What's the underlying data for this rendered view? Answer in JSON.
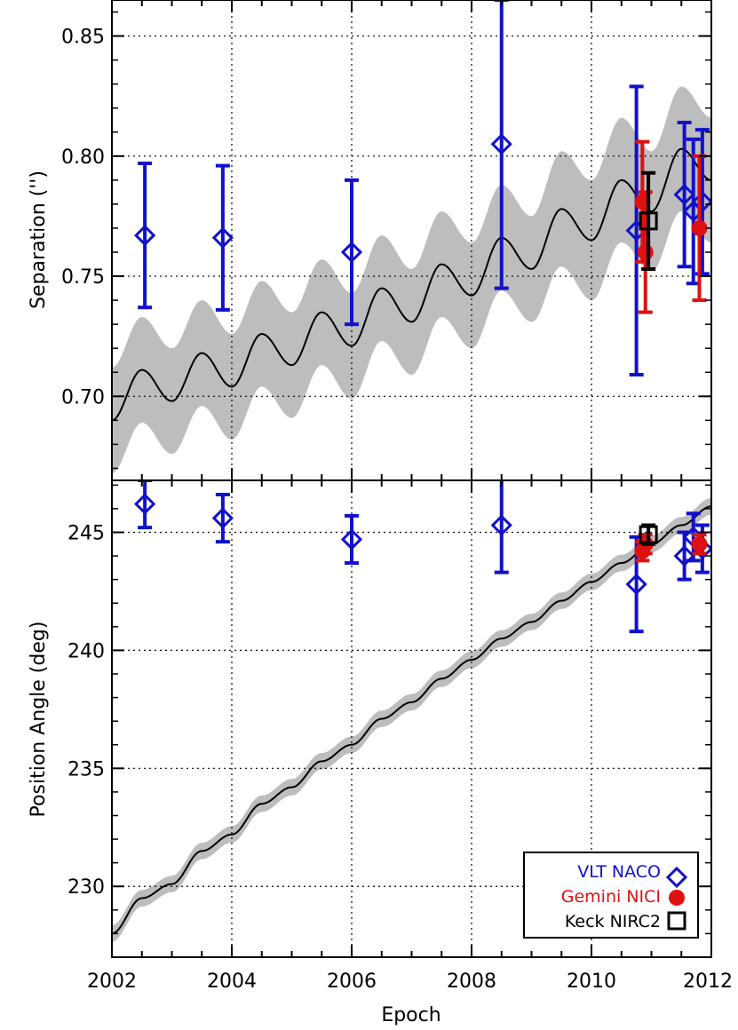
{
  "chart_data": [
    {
      "type": "scatter",
      "panel": "top",
      "ylabel": "Separation ('')",
      "xlim": [
        2002,
        2012
      ],
      "ylim": [
        0.665,
        0.865
      ],
      "yticks": [
        "0.70",
        "0.75",
        "0.80",
        "0.85"
      ],
      "grid": true,
      "model": {
        "curve": "black line with gray uncertainty band",
        "x": [
          2002.0,
          2002.5,
          2003.0,
          2003.5,
          2004.0,
          2004.5,
          2005.0,
          2005.5,
          2006.0,
          2006.5,
          2007.0,
          2007.5,
          2008.0,
          2008.5,
          2009.0,
          2009.5,
          2010.0,
          2010.5,
          2011.0,
          2011.5,
          2012.0
        ],
        "y": [
          0.69,
          0.711,
          0.698,
          0.718,
          0.704,
          0.726,
          0.713,
          0.735,
          0.721,
          0.745,
          0.731,
          0.755,
          0.742,
          0.766,
          0.753,
          0.778,
          0.765,
          0.79,
          0.777,
          0.803,
          0.79
        ],
        "band_halfwidth": [
          0.022,
          0.022,
          0.022,
          0.022,
          0.022,
          0.022,
          0.022,
          0.022,
          0.022,
          0.022,
          0.022,
          0.022,
          0.022,
          0.022,
          0.022,
          0.024,
          0.025,
          0.026,
          0.025,
          0.026,
          0.026
        ]
      },
      "series": [
        {
          "name": "VLT  NACO",
          "marker": "diamond",
          "color": "#1111cc",
          "x": [
            2002.55,
            2003.85,
            2006.0,
            2008.5,
            2010.75,
            2011.55,
            2011.7,
            2011.85
          ],
          "y": [
            0.767,
            0.766,
            0.76,
            0.805,
            0.769,
            0.784,
            0.777,
            0.781
          ],
          "err": [
            0.03,
            0.03,
            0.03,
            0.06,
            0.06,
            0.03,
            0.03,
            0.03
          ]
        },
        {
          "name": "Gemini NICI",
          "marker": "circle",
          "color": "#dd1111",
          "x": [
            2010.85,
            2010.9,
            2011.8
          ],
          "y": [
            0.781,
            0.76,
            0.77
          ],
          "err": [
            0.025,
            0.025,
            0.03
          ]
        },
        {
          "name": "Keck  NIRC2",
          "marker": "square",
          "color": "#000000",
          "x": [
            2010.95
          ],
          "y": [
            0.773
          ],
          "err": [
            0.02
          ]
        }
      ]
    },
    {
      "type": "scatter",
      "panel": "bottom",
      "xlabel": "Epoch",
      "ylabel": "Position Angle (deg)",
      "xlim": [
        2002,
        2012
      ],
      "ylim": [
        227,
        247.2
      ],
      "xticks": [
        "2002",
        "2004",
        "2006",
        "2008",
        "2010",
        "2012"
      ],
      "yticks": [
        "230",
        "235",
        "240",
        "245"
      ],
      "grid": true,
      "legend": "bottom-right",
      "model": {
        "curve": "black line with gray uncertainty band",
        "x": [
          2002.0,
          2002.5,
          2003.0,
          2003.5,
          2004.0,
          2004.5,
          2005.0,
          2005.5,
          2006.0,
          2006.5,
          2007.0,
          2007.5,
          2008.0,
          2008.5,
          2009.0,
          2009.5,
          2010.0,
          2010.5,
          2011.0,
          2011.5,
          2012.0
        ],
        "y": [
          228.0,
          229.5,
          230.1,
          231.5,
          232.2,
          233.5,
          234.2,
          235.3,
          236.0,
          237.1,
          237.8,
          238.8,
          239.6,
          240.5,
          241.2,
          242.1,
          242.9,
          243.7,
          244.5,
          245.3,
          246.1
        ],
        "band_halfwidth": 0.35
      },
      "series": [
        {
          "name": "VLT  NACO",
          "marker": "diamond",
          "color": "#1111cc",
          "x": [
            2002.55,
            2003.85,
            2006.0,
            2008.5,
            2010.75,
            2011.55,
            2011.7,
            2011.85
          ],
          "y": [
            246.2,
            245.6,
            244.7,
            245.3,
            242.8,
            244.0,
            244.8,
            244.3
          ],
          "err": [
            1.0,
            1.0,
            1.0,
            2.0,
            2.0,
            1.0,
            1.0,
            1.0
          ]
        },
        {
          "name": "Gemini NICI",
          "marker": "circle",
          "color": "#dd1111",
          "x": [
            2010.85,
            2010.9,
            2011.8
          ],
          "y": [
            244.2,
            244.5,
            244.5
          ],
          "err": [
            0.4,
            0.4,
            0.4
          ]
        },
        {
          "name": "Keck  NIRC2",
          "marker": "square",
          "color": "#000000",
          "x": [
            2010.95
          ],
          "y": [
            244.9
          ],
          "err": [
            0.4
          ]
        }
      ]
    }
  ]
}
